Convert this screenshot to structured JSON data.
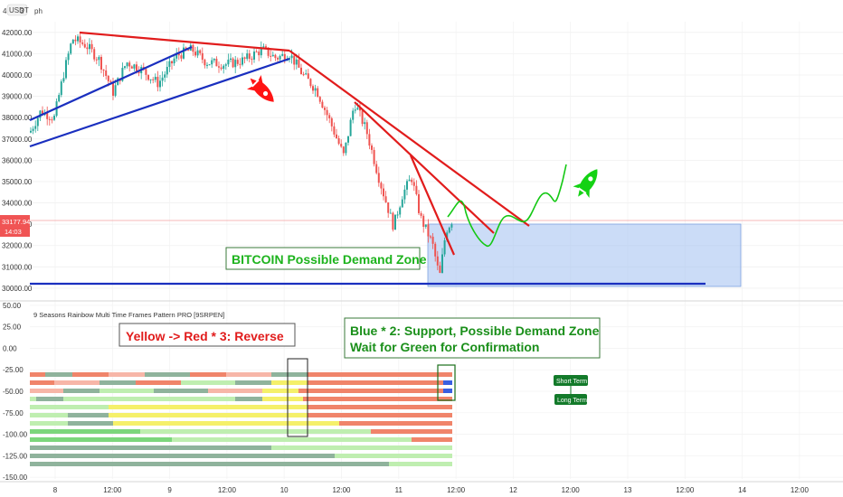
{
  "header": {
    "symbol": "USDT",
    "left_number": "4",
    "suffix": "3",
    "tail": "ph"
  },
  "chart_data": {
    "type": "candlestick",
    "price_axis": {
      "ticks": [
        "42000.00",
        "41000.00",
        "40000.00",
        "39000.00",
        "38000.00",
        "37000.00",
        "36000.00",
        "35000.00",
        "34000.00",
        "33000.00",
        "32000.00",
        "31000.00",
        "30000.00"
      ],
      "ylim": [
        29700,
        42500
      ]
    },
    "current_price": {
      "label": "33177.94",
      "timer": "14:03"
    },
    "time_axis": {
      "ticks": [
        "8",
        "12:00",
        "9",
        "12:00",
        "10",
        "12:00",
        "11",
        "12:00",
        "12",
        "12:00",
        "13",
        "12:00",
        "14",
        "12:00"
      ]
    },
    "indicator": {
      "title": "9 Seasons Rainbow Multi Time Frames Pattern PRO [9SRPEN]",
      "ticks": [
        "50.00",
        "25.00",
        "0.00",
        "-25.00",
        "-50.00",
        "-75.00",
        "-100.00",
        "-125.00",
        "-150.00"
      ],
      "ylim": [
        -152,
        52
      ]
    },
    "annotations": {
      "demand_zone_label": "BITCOIN Possible Demand Zone",
      "reverse_label": "Yellow -> Red * 3:  Reverse",
      "support_label_line1": "Blue * 2: Support, Possible Demand Zone",
      "support_label_line2": "Wait for Green for Confirmation",
      "short_term": "Short Term",
      "long_term": "Long Term"
    },
    "colors": {
      "red": "#e11c1c",
      "blue": "#1a2fbf",
      "green": "#14c814",
      "zone": "#a9c4f2",
      "candle_up": "#26a69a",
      "candle_down": "#ef5350"
    }
  }
}
